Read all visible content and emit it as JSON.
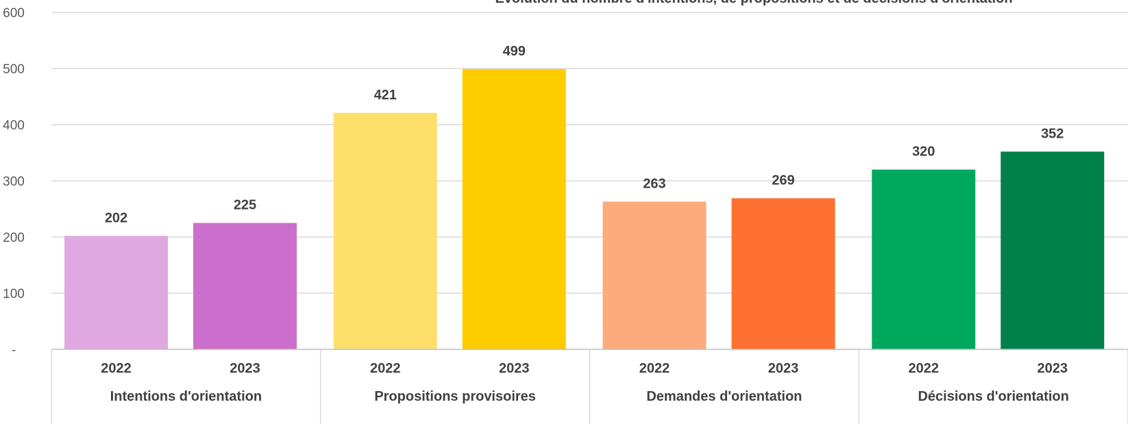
{
  "chart_data": {
    "type": "bar",
    "title": "",
    "title_partial": "Évolution du nombre d'intentions, de propositions et de décisions d'orientation",
    "xlabel": "",
    "ylabel": "",
    "ylim": [
      0,
      600
    ],
    "yticks": [
      {
        "value": 0,
        "label": "-"
      },
      {
        "value": 100,
        "label": "100"
      },
      {
        "value": 200,
        "label": "200"
      },
      {
        "value": 300,
        "label": "300"
      },
      {
        "value": 400,
        "label": "400"
      },
      {
        "value": 500,
        "label": "500"
      },
      {
        "value": 600,
        "label": "600"
      }
    ],
    "grid": true,
    "groups": [
      {
        "name": "Intentions d'orientation",
        "categories": [
          "2022",
          "2023"
        ],
        "values": [
          202,
          225
        ],
        "colors": [
          "#E0A8E0",
          "#CC6FCC"
        ]
      },
      {
        "name": "Propositions provisoires",
        "categories": [
          "2022",
          "2023"
        ],
        "values": [
          421,
          499
        ],
        "colors": [
          "#FFDF6B",
          "#FFCC00"
        ]
      },
      {
        "name": "Demandes d'orientation",
        "categories": [
          "2022",
          "2023"
        ],
        "values": [
          263,
          269
        ],
        "colors": [
          "#FDAA7D",
          "#FF7130"
        ]
      },
      {
        "name": "Décisions d'orientation",
        "categories": [
          "2022",
          "2023"
        ],
        "values": [
          320,
          352
        ],
        "colors": [
          "#00A85E",
          "#00804A"
        ]
      }
    ]
  }
}
